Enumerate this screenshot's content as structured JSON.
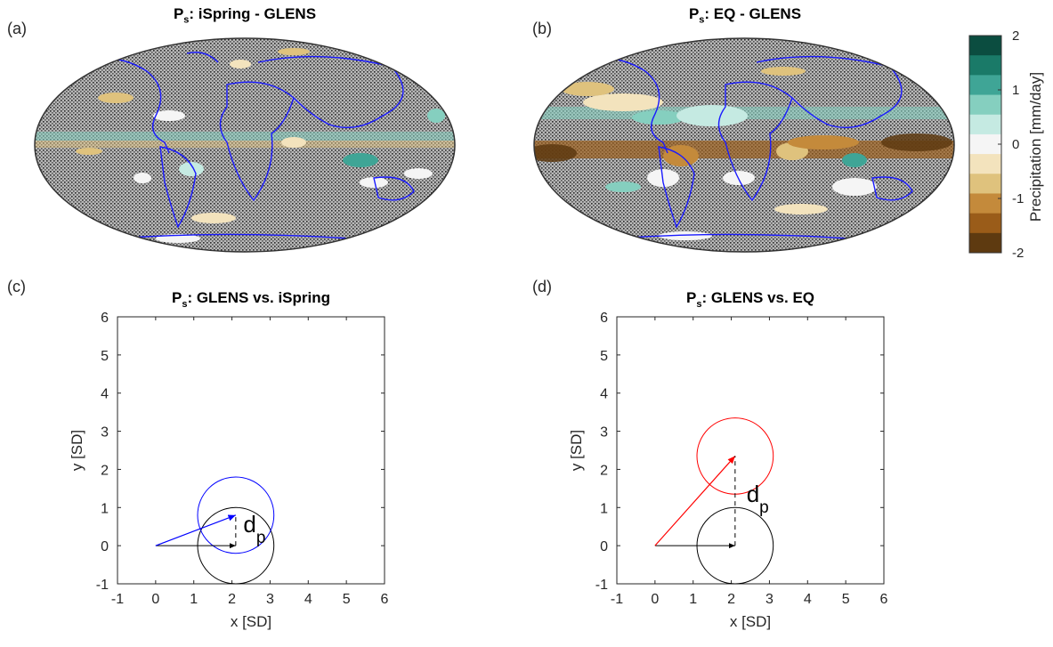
{
  "panels": {
    "a": {
      "letter": "(a)",
      "title_main": "P",
      "title_sub": "s",
      "title_rest": ": iSpring - GLENS"
    },
    "b": {
      "letter": "(b)",
      "title_main": "P",
      "title_sub": "s",
      "title_rest": ": EQ - GLENS"
    },
    "c": {
      "letter": "(c)"
    },
    "d": {
      "letter": "(d)"
    }
  },
  "colorbar": {
    "label": "Precipitation [mm/day]",
    "ticks": [
      "2",
      "1",
      "0",
      "-1",
      "-2"
    ],
    "colors": [
      "#0b4d40",
      "#1a7a68",
      "#3fa596",
      "#85cfbf",
      "#c5eae2",
      "#f5f5f5",
      "#f3e3bd",
      "#dfc27d",
      "#c48a3b",
      "#9a5c19",
      "#5e3a10"
    ]
  },
  "colors": {
    "reference_circle": "#000000",
    "ispring": "#0000ff",
    "eq": "#ff0000",
    "coastline": "#1a1aff"
  },
  "chart_data": [
    {
      "type": "scatter",
      "title_main": "P",
      "title_sub": "s",
      "title_rest": ": GLENS vs. iSpring",
      "xlabel": "x [SD]",
      "ylabel": "y [SD]",
      "xlim": [
        -1,
        6
      ],
      "ylim": [
        -1,
        6
      ],
      "xticks": [
        "-1",
        "0",
        "1",
        "2",
        "3",
        "4",
        "5",
        "6"
      ],
      "yticks": [
        "-1",
        "0",
        "1",
        "2",
        "3",
        "4",
        "5",
        "6"
      ],
      "reference": {
        "center": [
          2.1,
          0
        ],
        "radius": 1.0,
        "vector_end": [
          2.1,
          0
        ]
      },
      "comparison": {
        "center": [
          2.1,
          0.8
        ],
        "radius": 1.0,
        "vector_end": [
          2.1,
          0.8
        ]
      },
      "dp_label": "d",
      "dp_sub": "p",
      "dp_pos": [
        2.3,
        0.35
      ]
    },
    {
      "type": "scatter",
      "title_main": "P",
      "title_sub": "s",
      "title_rest": ": GLENS vs. EQ",
      "xlabel": "x [SD]",
      "ylabel": "y [SD]",
      "xlim": [
        -1,
        6
      ],
      "ylim": [
        -1,
        6
      ],
      "xticks": [
        "-1",
        "0",
        "1",
        "2",
        "3",
        "4",
        "5",
        "6"
      ],
      "yticks": [
        "-1",
        "0",
        "1",
        "2",
        "3",
        "4",
        "5",
        "6"
      ],
      "reference": {
        "center": [
          2.1,
          0
        ],
        "radius": 1.0,
        "vector_end": [
          2.1,
          0
        ]
      },
      "comparison": {
        "center": [
          2.1,
          2.35
        ],
        "radius": 1.0,
        "vector_end": [
          2.1,
          2.35
        ]
      },
      "dp_label": "d",
      "dp_sub": "p",
      "dp_pos": [
        2.4,
        1.15
      ]
    }
  ]
}
